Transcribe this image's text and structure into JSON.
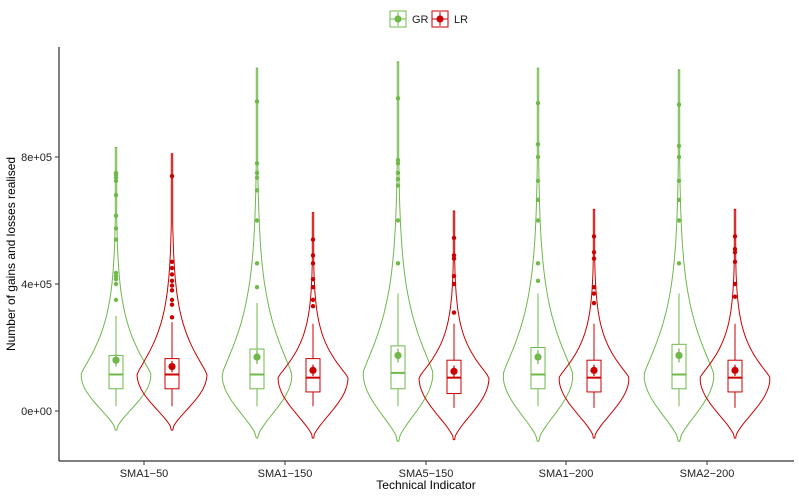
{
  "chart_data": {
    "type": "violin",
    "xlabel": "Technical Indicator",
    "ylabel": "Number of gains and losses realised",
    "categories": [
      "SMA1−50",
      "SMA1−150",
      "SMA5−150",
      "SMA1−200",
      "SMA2−200"
    ],
    "yticks": [
      {
        "value": 0,
        "label": "0e+00"
      },
      {
        "value": 400000,
        "label": "4e+05"
      },
      {
        "value": 800000,
        "label": "8e+05"
      }
    ],
    "ylim": [
      -160000,
      1150000
    ],
    "legend": {
      "position": "top",
      "entries": [
        "GR",
        "LR"
      ]
    },
    "colors": {
      "GR": "#6fb84a",
      "LR": "#cc0000"
    },
    "series": [
      {
        "name": "GR",
        "groups": [
          {
            "category": "SMA1−50",
            "min": -60000,
            "max": 830000,
            "q1": 70000,
            "median": 115000,
            "q3": 175000,
            "wlow": 15000,
            "whigh": 300000,
            "mean": 160000,
            "mean_err": 20000,
            "outliers": [
              350000,
              400000,
              415000,
              425000,
              435000,
              540000,
              575000,
              615000,
              680000,
              725000,
              735000,
              745000,
              750000
            ]
          },
          {
            "category": "SMA1−150",
            "min": -85000,
            "max": 1080000,
            "q1": 70000,
            "median": 115000,
            "q3": 195000,
            "wlow": 15000,
            "whigh": 340000,
            "mean": 170000,
            "mean_err": 22000,
            "outliers": [
              390000,
              465000,
              600000,
              695000,
              735000,
              750000,
              780000,
              975000
            ]
          },
          {
            "category": "SMA5−150",
            "min": -95000,
            "max": 1100000,
            "q1": 70000,
            "median": 120000,
            "q3": 205000,
            "wlow": 15000,
            "whigh": 370000,
            "mean": 175000,
            "mean_err": 22000,
            "outliers": [
              465000,
              600000,
              710000,
              730000,
              750000,
              780000,
              790000,
              985000
            ]
          },
          {
            "category": "SMA1−200",
            "min": -95000,
            "max": 1080000,
            "q1": 70000,
            "median": 115000,
            "q3": 200000,
            "wlow": 15000,
            "whigh": 370000,
            "mean": 170000,
            "mean_err": 22000,
            "outliers": [
              410000,
              465000,
              600000,
              665000,
              725000,
              800000,
              840000,
              970000
            ]
          },
          {
            "category": "SMA2−200",
            "min": -95000,
            "max": 1075000,
            "q1": 70000,
            "median": 115000,
            "q3": 210000,
            "wlow": 15000,
            "whigh": 370000,
            "mean": 175000,
            "mean_err": 22000,
            "outliers": [
              465000,
              600000,
              665000,
              725000,
              800000,
              835000,
              965000
            ]
          }
        ]
      },
      {
        "name": "LR",
        "groups": [
          {
            "category": "SMA1−50",
            "min": -60000,
            "max": 810000,
            "q1": 70000,
            "median": 115000,
            "q3": 165000,
            "wlow": 15000,
            "whigh": 280000,
            "mean": 140000,
            "mean_err": 18000,
            "outliers": [
              295000,
              335000,
              350000,
              380000,
              395000,
              410000,
              430000,
              450000,
              470000,
              740000
            ]
          },
          {
            "category": "SMA1−150",
            "min": -85000,
            "max": 625000,
            "q1": 60000,
            "median": 105000,
            "q3": 165000,
            "wlow": 15000,
            "whigh": 275000,
            "mean": 128000,
            "mean_err": 18000,
            "outliers": [
              330000,
              350000,
              390000,
              415000,
              465000,
              490000,
              540000
            ]
          },
          {
            "category": "SMA5−150",
            "min": -90000,
            "max": 630000,
            "q1": 55000,
            "median": 105000,
            "q3": 160000,
            "wlow": 10000,
            "whigh": 275000,
            "mean": 125000,
            "mean_err": 18000,
            "outliers": [
              310000,
              400000,
              425000,
              480000,
              490000,
              545000
            ]
          },
          {
            "category": "SMA1−200",
            "min": -85000,
            "max": 635000,
            "q1": 60000,
            "median": 105000,
            "q3": 160000,
            "wlow": 10000,
            "whigh": 275000,
            "mean": 128000,
            "mean_err": 18000,
            "outliers": [
              340000,
              370000,
              390000,
              480000,
              500000,
              550000
            ]
          },
          {
            "category": "SMA2−200",
            "min": -85000,
            "max": 635000,
            "q1": 60000,
            "median": 105000,
            "q3": 160000,
            "wlow": 10000,
            "whigh": 275000,
            "mean": 128000,
            "mean_err": 18000,
            "outliers": [
              360000,
              400000,
              470000,
              500000,
              510000,
              550000
            ]
          }
        ]
      }
    ]
  }
}
